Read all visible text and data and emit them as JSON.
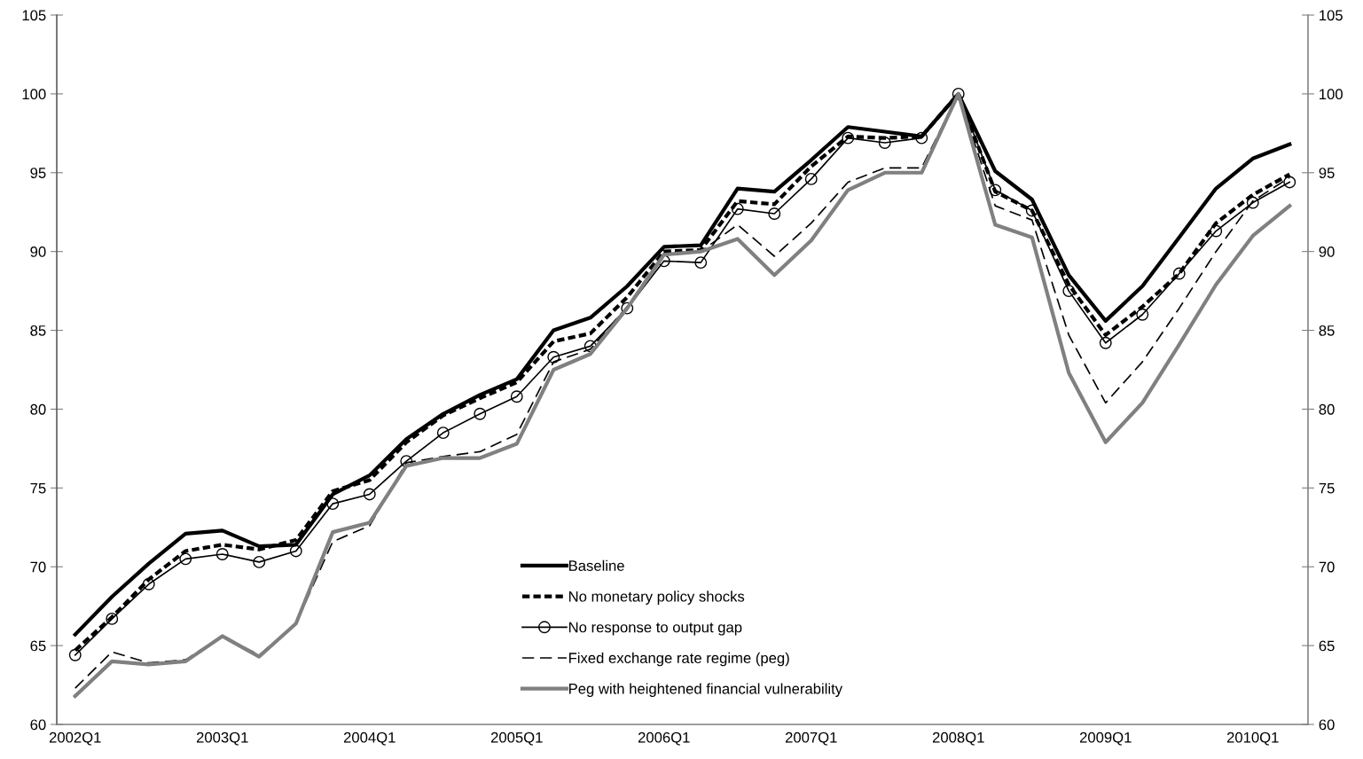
{
  "chart_data": {
    "type": "line",
    "categories": [
      "2002Q1",
      null,
      null,
      null,
      "2003Q1",
      null,
      null,
      null,
      "2004Q1",
      null,
      null,
      null,
      "2005Q1",
      null,
      null,
      null,
      "2006Q1",
      null,
      null,
      null,
      "2007Q1",
      null,
      null,
      null,
      "2008Q1",
      null,
      null,
      null,
      "2009Q1",
      null,
      null,
      null,
      "2010Q1",
      null
    ],
    "series": [
      {
        "name": "Baseline",
        "color": "#000000",
        "line_style": "solid",
        "marker": "none",
        "values": [
          65.7,
          68.1,
          70.2,
          72.1,
          72.3,
          71.3,
          71.4,
          74.6,
          75.8,
          78.1,
          79.7,
          80.9,
          81.9,
          85.0,
          85.8,
          87.8,
          90.3,
          90.4,
          94.0,
          93.8,
          95.8,
          97.9,
          97.6,
          97.3,
          100,
          95.1,
          93.3,
          88.5,
          85.6,
          87.8,
          90.9,
          94.0,
          95.9,
          96.8
        ]
      },
      {
        "name": "No monetary policy shocks",
        "color": "#000000",
        "line_style": "dashed",
        "marker": "none",
        "values": [
          64.7,
          66.8,
          69.2,
          71.0,
          71.4,
          71.1,
          71.7,
          74.8,
          75.5,
          77.9,
          79.6,
          80.7,
          81.7,
          84.3,
          84.8,
          87.1,
          90.0,
          90.1,
          93.2,
          93.0,
          95.4,
          97.3,
          97.2,
          97.3,
          100,
          93.8,
          92.6,
          87.9,
          84.7,
          86.5,
          88.6,
          91.8,
          93.6,
          94.9
        ]
      },
      {
        "name": "No response to output gap",
        "color": "#000000",
        "line_style": "solid",
        "marker": "circle",
        "values": [
          64.4,
          66.7,
          68.9,
          70.5,
          70.8,
          70.3,
          71.0,
          74.0,
          74.6,
          76.7,
          78.5,
          79.7,
          80.8,
          83.3,
          84.0,
          86.4,
          89.4,
          89.3,
          92.7,
          92.4,
          94.6,
          97.2,
          96.9,
          97.2,
          100,
          93.9,
          92.6,
          87.5,
          84.2,
          86.0,
          88.6,
          91.3,
          93.1,
          94.4
        ]
      },
      {
        "name": "Fixed exchange rate regime (peg)",
        "color": "#000000",
        "line_style": "dashed",
        "marker": "none",
        "values": [
          62.3,
          64.6,
          63.9,
          64.1,
          65.6,
          64.4,
          66.4,
          71.6,
          72.6,
          76.6,
          77.0,
          77.3,
          78.4,
          83.0,
          83.8,
          86.5,
          89.9,
          90.0,
          91.7,
          89.7,
          91.8,
          94.4,
          95.3,
          95.3,
          100,
          92.9,
          92.0,
          84.7,
          80.4,
          83.0,
          86.4,
          90.0,
          93.2,
          94.7
        ]
      },
      {
        "name": "Peg with heightened financial vulnerability",
        "color": "#808080",
        "line_style": "solid",
        "marker": "none",
        "values": [
          61.8,
          64.0,
          63.8,
          64.0,
          65.6,
          64.3,
          66.4,
          72.2,
          72.8,
          76.4,
          76.9,
          76.9,
          77.8,
          82.5,
          83.5,
          86.4,
          89.8,
          90.0,
          90.8,
          88.5,
          90.7,
          93.9,
          95.0,
          95.0,
          100,
          91.7,
          90.9,
          82.3,
          77.9,
          80.4,
          84.1,
          87.9,
          91.0,
          92.9
        ]
      }
    ],
    "ylim": [
      60,
      105
    ],
    "yticks": [
      60,
      65,
      70,
      75,
      80,
      85,
      90,
      95,
      100,
      105
    ],
    "y2lim": [
      60,
      105
    ],
    "y2ticks": [
      60,
      65,
      70,
      75,
      80,
      85,
      90,
      95,
      100,
      105
    ],
    "grid": false,
    "legend": "bottom"
  }
}
